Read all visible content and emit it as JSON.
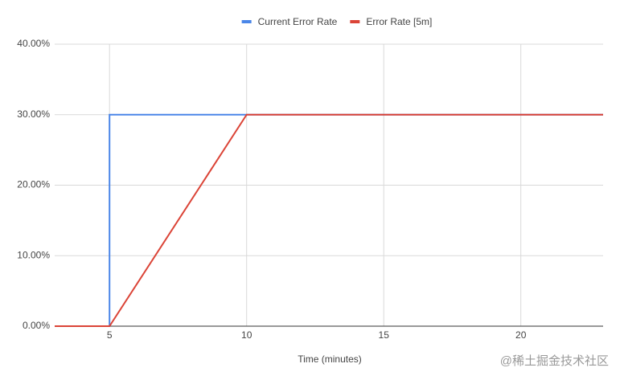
{
  "chart_data": {
    "type": "line",
    "x_label": "Time (minutes)",
    "xlim": [
      3,
      23
    ],
    "xticks": [
      5,
      10,
      15,
      20
    ],
    "ylim": [
      0,
      40
    ],
    "yticks": [
      {
        "value": 0,
        "label": "0.00%"
      },
      {
        "value": 10,
        "label": "10.00%"
      },
      {
        "value": 20,
        "label": "20.00%"
      },
      {
        "value": 30,
        "label": "30.00%"
      },
      {
        "value": 40,
        "label": "40.00%"
      }
    ],
    "grid": true,
    "legend": "top",
    "series": [
      {
        "name": "Current Error Rate",
        "color": "#4a86e8",
        "x": [
          3,
          5,
          5,
          23
        ],
        "values": [
          0,
          0,
          30,
          30
        ]
      },
      {
        "name": "Error Rate [5m]",
        "color": "#db4437",
        "x": [
          3,
          5,
          10,
          23
        ],
        "values": [
          0,
          0,
          30,
          30
        ]
      }
    ],
    "watermark": "@稀土掘金技术社区"
  }
}
